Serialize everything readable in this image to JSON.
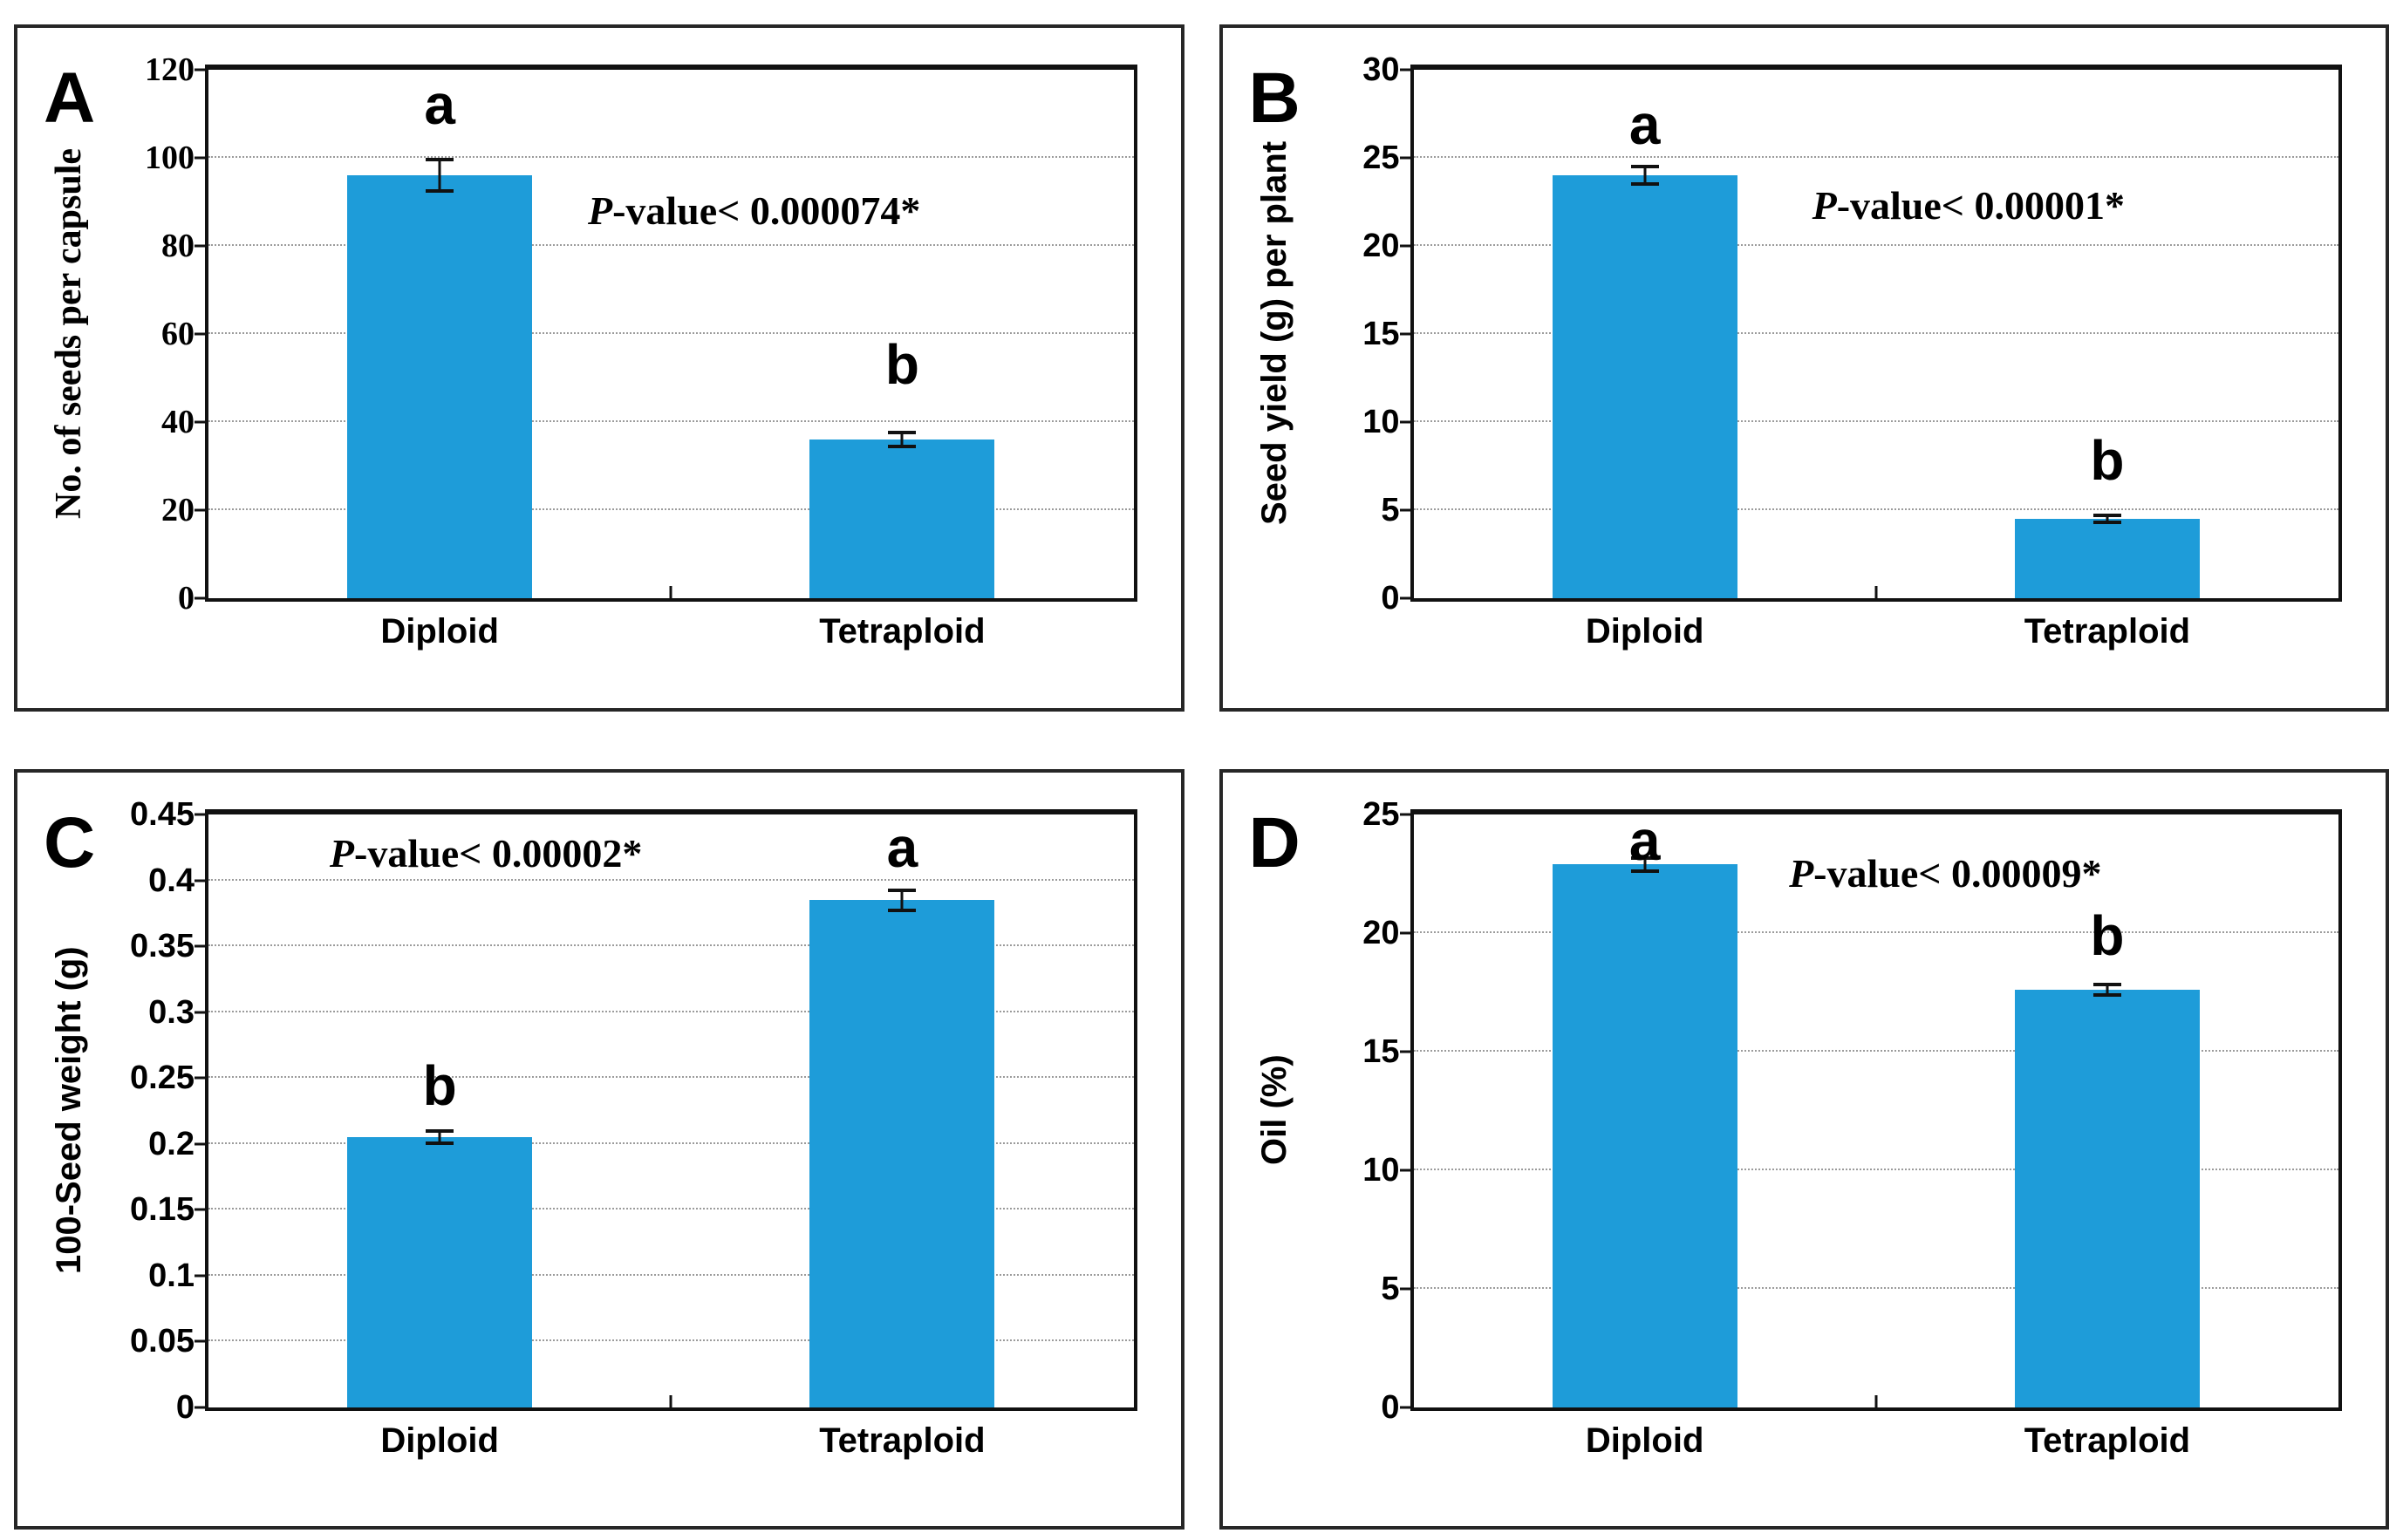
{
  "styles": {
    "bar_color": "#1e9cd9",
    "grid_color": "#9b9b9b",
    "axis_color": "#111111",
    "error_bar_color": "#111111",
    "text_color": "#000000",
    "background": "#ffffff"
  },
  "chart_data": [
    {
      "type": "bar",
      "panel_label": "A",
      "ylabel": "No. of seeds per capsule",
      "ylabel_font": "serif",
      "categories": [
        "Diploid",
        "Tetraploid"
      ],
      "values": [
        96,
        36
      ],
      "errors": [
        4,
        2
      ],
      "sig_letters": [
        "a",
        "b"
      ],
      "sig_letter_y": [
        112,
        53
      ],
      "ylim": [
        0,
        120
      ],
      "ytick_step": 20,
      "ytick_labels": [
        "0",
        "20",
        "40",
        "60",
        "80",
        "100",
        "120"
      ],
      "p_value_prefix": "P",
      "p_value_text": "-value< 0.000074*",
      "p_pos": {
        "x_frac": 0.59,
        "y_value": 88
      },
      "grid": "horizontal-dotted",
      "legend": "none"
    },
    {
      "type": "bar",
      "panel_label": "B",
      "ylabel": "Seed yield (g) per plant",
      "ylabel_font": "sans",
      "categories": [
        "Diploid",
        "Tetraploid"
      ],
      "values": [
        24,
        4.5
      ],
      "errors": [
        0.6,
        0.3
      ],
      "sig_letters": [
        "a",
        "b"
      ],
      "sig_letter_y": [
        26.9,
        7.8
      ],
      "ylim": [
        0,
        30
      ],
      "ytick_step": 5,
      "ytick_labels": [
        "0",
        "5",
        "10",
        "15",
        "20",
        "25",
        "30"
      ],
      "p_value_prefix": "P",
      "p_value_text": "-value< 0.00001*",
      "p_pos": {
        "x_frac": 0.6,
        "y_value": 22.3
      },
      "grid": "horizontal-dotted",
      "legend": "none"
    },
    {
      "type": "bar",
      "panel_label": "C",
      "ylabel": "100-Seed weight (g)",
      "ylabel_font": "sans",
      "categories": [
        "Diploid",
        "Tetraploid"
      ],
      "values": [
        0.205,
        0.385
      ],
      "errors": [
        0.006,
        0.009
      ],
      "sig_letters": [
        "b",
        "a"
      ],
      "sig_letter_y": [
        0.244,
        0.425
      ],
      "ylim": [
        0,
        0.45
      ],
      "ytick_step": 0.05,
      "ytick_labels": [
        "0",
        "0.05",
        "0.1",
        "0.15",
        "0.2",
        "0.25",
        "0.3",
        "0.35",
        "0.4",
        "0.45"
      ],
      "p_value_prefix": "P",
      "p_value_text": "-value< 0.00002*",
      "p_pos": {
        "x_frac": 0.3,
        "y_value": 0.42
      },
      "grid": "horizontal-dotted",
      "legend": "none"
    },
    {
      "type": "bar",
      "panel_label": "D",
      "ylabel": "Oil (%)",
      "ylabel_font": "sans",
      "categories": [
        "Diploid",
        "Tetraploid"
      ],
      "values": [
        22.9,
        17.6
      ],
      "errors": [
        0.35,
        0.3
      ],
      "sig_letters": [
        "a",
        "b"
      ],
      "sig_letter_y": [
        23.9,
        19.9
      ],
      "ylim": [
        0,
        25
      ],
      "ytick_step": 5,
      "ytick_labels": [
        "0",
        "5",
        "10",
        "15",
        "20",
        "25"
      ],
      "p_value_prefix": "P",
      "p_value_text": "-value< 0.00009*",
      "p_pos": {
        "x_frac": 0.575,
        "y_value": 22.5
      },
      "grid": "horizontal-dotted",
      "legend": "none"
    }
  ]
}
